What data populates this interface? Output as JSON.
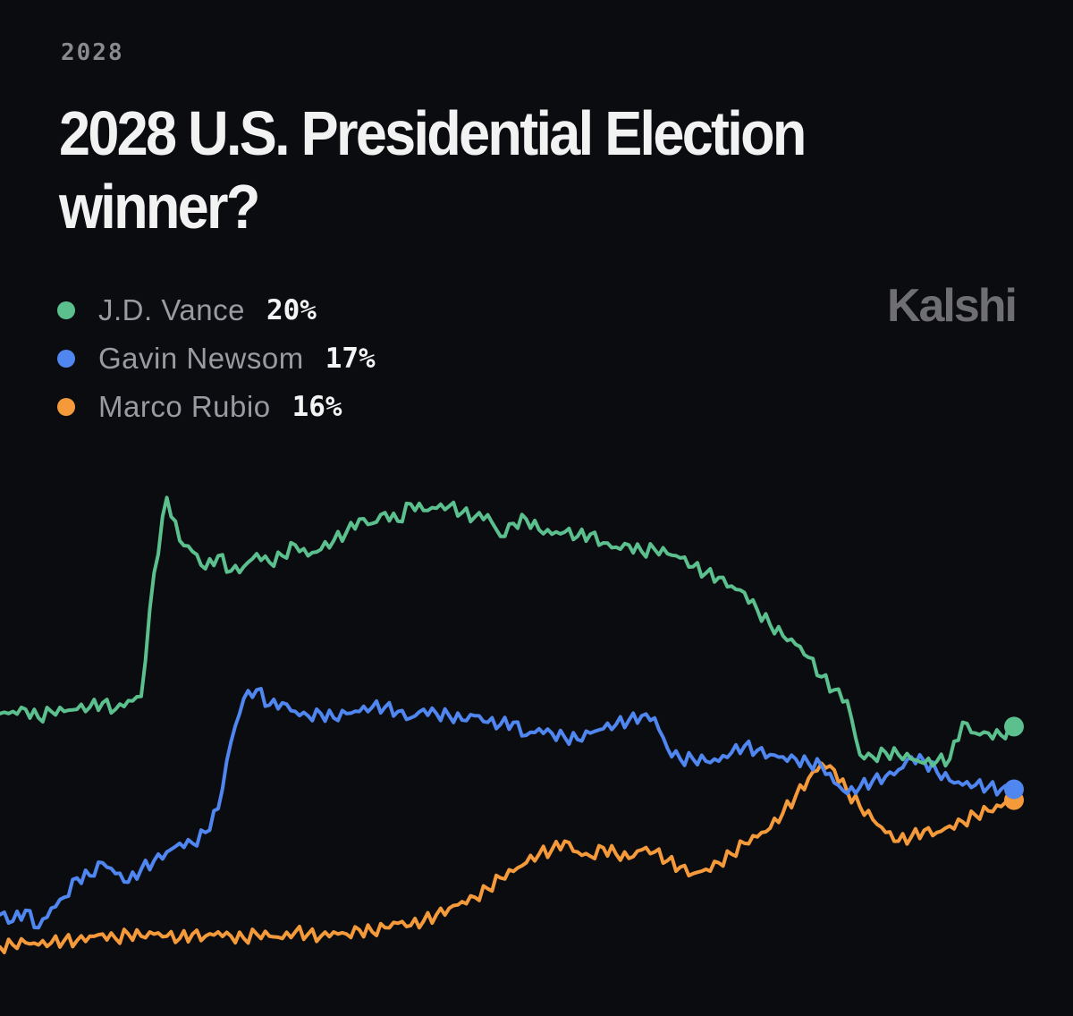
{
  "header": {
    "eyebrow": "2028",
    "title": "2028 U.S. Presidential Election winner?"
  },
  "brand": {
    "logo_text": "Kalshi"
  },
  "chart_data": {
    "type": "line",
    "title": "2028 U.S. Presidential Election winner?",
    "xlabel": "",
    "ylabel": "",
    "ylim": [
      8,
      32
    ],
    "grid": false,
    "legend_position": "top-left",
    "series": [
      {
        "name": "J.D. Vance",
        "color": "#5bc08e",
        "current": "20%",
        "values": [
          20.5,
          20.6,
          20.7,
          20.3,
          20.6,
          20.6,
          20.7,
          20.8,
          21,
          20.7,
          21.1,
          21.3,
          27,
          30.5,
          28.5,
          28,
          27.2,
          27.8,
          27.1,
          27.3,
          27.9,
          27.5,
          27.8,
          28.3,
          27.8,
          28.1,
          28.5,
          28.9,
          29.5,
          29.3,
          29.8,
          29.4,
          30.2,
          29.9,
          30.0,
          30.1,
          29.8,
          29.6,
          29.7,
          28.7,
          29.3,
          29.5,
          29.0,
          28.8,
          28.9,
          28.7,
          28.8,
          28.4,
          28.2,
          28.3,
          28.0,
          28.1,
          27.9,
          27.7,
          27.3,
          27.0,
          26.8,
          26.4,
          26.1,
          25.3,
          24.6,
          24.1,
          23.7,
          23.1,
          22.2,
          21.6,
          21.1,
          18.6,
          18.5,
          18.7,
          18.6,
          18.4,
          18.2,
          18.3,
          18.4,
          20.1,
          19.6,
          19.6,
          19.5,
          19.9
        ]
      },
      {
        "name": "Gavin Newsom",
        "color": "#4f86f0",
        "current": "17%",
        "values": [
          11.2,
          10.9,
          11.4,
          10.6,
          11.5,
          12.0,
          12.9,
          13.0,
          13.6,
          13.1,
          12.7,
          13.3,
          13.7,
          14.1,
          14.5,
          14.5,
          15.0,
          16.1,
          19.2,
          21.2,
          21.6,
          20.9,
          21.0,
          20.6,
          20.4,
          20.5,
          20.3,
          20.5,
          20.6,
          20.8,
          20.8,
          20.6,
          20.3,
          20.7,
          20.5,
          20.4,
          20.2,
          20.4,
          20.1,
          20.0,
          20.1,
          19.5,
          19.8,
          19.6,
          19.4,
          19.3,
          19.6,
          19.8,
          20.0,
          20.2,
          20.4,
          20.3,
          18.9,
          18.4,
          18.4,
          18.3,
          18.3,
          18.7,
          19.0,
          18.8,
          18.6,
          18.5,
          18.4,
          18.2,
          18.1,
          17.3,
          16.8,
          17.1,
          17.4,
          17.6,
          17.9,
          18.5,
          18.3,
          17.8,
          17.4,
          17.2,
          17.2,
          17.1,
          17.0,
          17.0
        ]
      },
      {
        "name": "Marco Rubio",
        "color": "#f59a3b",
        "current": "16%",
        "values": [
          9.7,
          9.8,
          9.9,
          9.8,
          9.9,
          10.0,
          10.0,
          10.2,
          10.3,
          10.1,
          10.3,
          10.2,
          10.3,
          10.2,
          10.1,
          10.3,
          10.2,
          10.4,
          10.2,
          10.1,
          10.3,
          10.2,
          10.1,
          10.4,
          10.3,
          10.2,
          10.4,
          10.3,
          10.5,
          10.4,
          10.6,
          10.8,
          10.7,
          10.9,
          11.2,
          11.5,
          11.8,
          12.0,
          12.4,
          12.9,
          13.2,
          13.6,
          14.0,
          14.2,
          14.6,
          14.1,
          13.9,
          14.3,
          14.0,
          13.8,
          14.2,
          14.1,
          13.7,
          13.4,
          13.1,
          13.3,
          13.6,
          14.0,
          14.5,
          14.8,
          15.2,
          15.9,
          16.7,
          17.5,
          18.2,
          17.9,
          16.9,
          16.2,
          15.6,
          15.0,
          14.6,
          14.8,
          15.1,
          15.0,
          15.3,
          15.5,
          15.8,
          16.0,
          16.2,
          16.5
        ]
      }
    ]
  }
}
